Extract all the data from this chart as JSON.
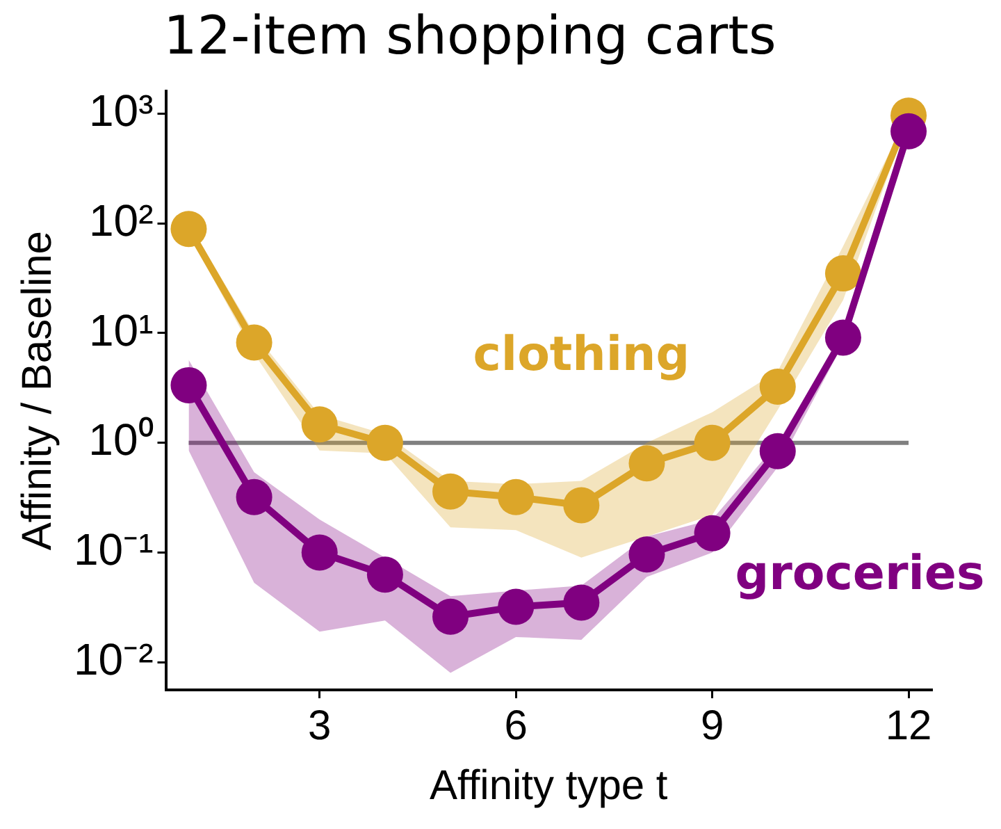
{
  "chart_data": {
    "type": "line",
    "title": "12-item shopping carts",
    "xlabel": "Affinity type t",
    "ylabel": "Affinity / Baseline",
    "x": [
      1,
      2,
      3,
      4,
      5,
      6,
      7,
      8,
      9,
      10,
      11,
      12
    ],
    "series": [
      {
        "name": "clothing",
        "color": "#dca629",
        "values": [
          89,
          8.2,
          1.47,
          1.0,
          0.36,
          0.32,
          0.27,
          0.65,
          1.0,
          3.25,
          35,
          960
        ],
        "lower": [
          80,
          6.5,
          0.85,
          0.8,
          0.17,
          0.16,
          0.09,
          0.14,
          0.22,
          2.0,
          20,
          900
        ],
        "upper": [
          100,
          10,
          1.8,
          1.2,
          0.45,
          0.42,
          0.45,
          1.0,
          1.9,
          4.5,
          62,
          1000
        ]
      },
      {
        "name": "groceries",
        "color": "#800080",
        "values": [
          3.35,
          0.32,
          0.1,
          0.063,
          0.026,
          0.032,
          0.035,
          0.096,
          0.15,
          0.84,
          9.1,
          690
        ],
        "lower": [
          0.85,
          0.053,
          0.019,
          0.024,
          0.008,
          0.017,
          0.016,
          0.06,
          0.1,
          0.6,
          8,
          650
        ],
        "upper": [
          5.7,
          0.54,
          0.2,
          0.09,
          0.04,
          0.045,
          0.05,
          0.14,
          0.2,
          1.0,
          10,
          750
        ]
      }
    ],
    "log": "y",
    "xlim": [
      0.65,
      12.35
    ],
    "xticks": [
      3,
      6,
      9,
      12
    ],
    "ylim": [
      0.0056,
      1600
    ],
    "yticks": [
      {
        "value": 0.01,
        "label": "10⁻²"
      },
      {
        "value": 0.1,
        "label": "10⁻¹"
      },
      {
        "value": 1,
        "label": "10⁰"
      },
      {
        "value": 10,
        "label": "10¹"
      },
      {
        "value": 100,
        "label": "10²"
      },
      {
        "value": 1000,
        "label": "10³"
      }
    ],
    "ref_lines": [
      {
        "axis": "y",
        "value": 1,
        "color": "#808080"
      }
    ],
    "grid": false,
    "legend": false,
    "marker": "circle",
    "line_style": "solid"
  }
}
